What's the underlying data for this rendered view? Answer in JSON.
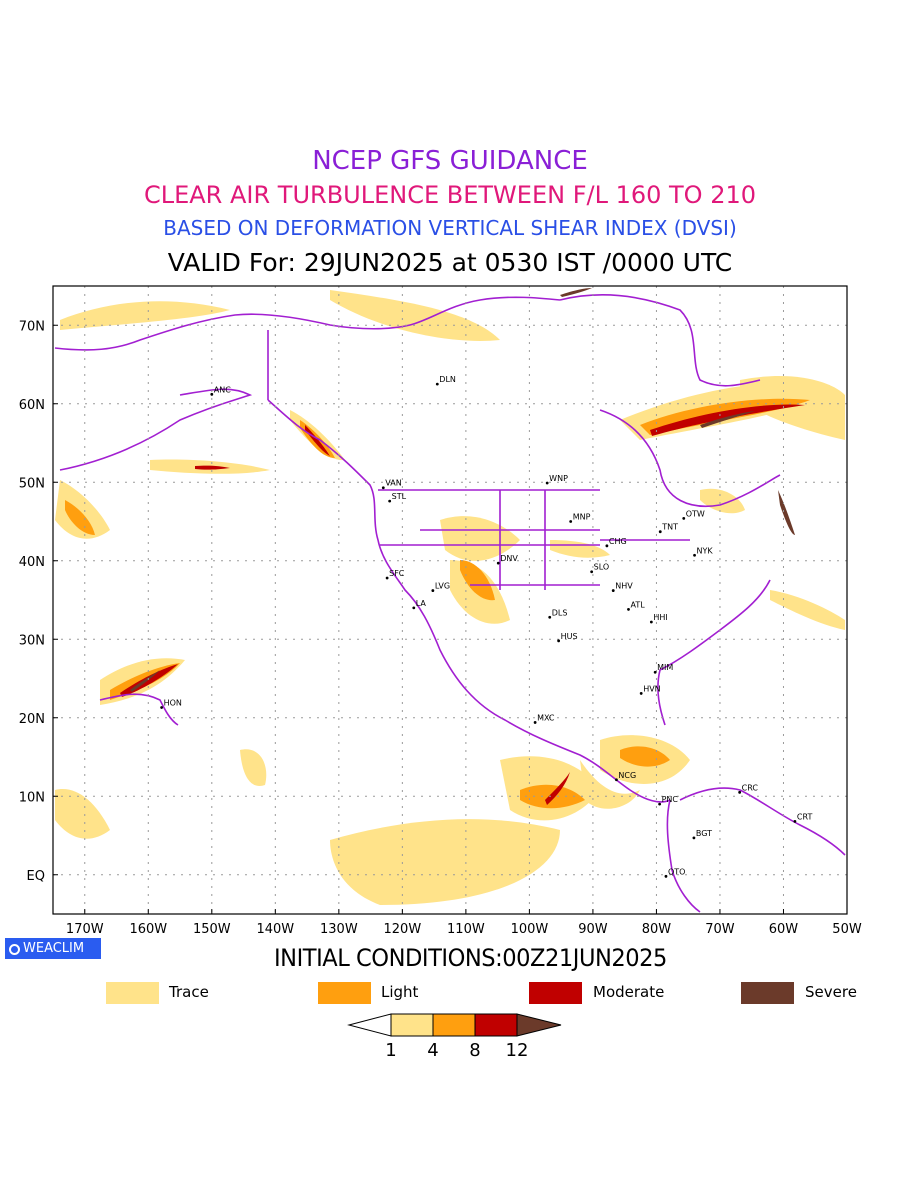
{
  "titles": {
    "line1": "NCEP GFS GUIDANCE",
    "line2": "CLEAR AIR TURBULENCE BETWEEN F/L 160 TO 210",
    "line3": "BASED ON DEFORMATION VERTICAL SHEAR INDEX (DVSI)",
    "line4": "VALID For: 29JUN2025 at 0530 IST /0000 UTC"
  },
  "colors": {
    "title1": "#8a1fd6",
    "title2": "#e0187a",
    "title3": "#2a4fe6",
    "coast": "#a21fd1",
    "trace": "#ffe38a",
    "light": "#ff9f0f",
    "moderate": "#c00000",
    "severe": "#6b3a2a",
    "grid": "#9a9a9a"
  },
  "map": {
    "lon_range": [
      -175,
      -50
    ],
    "lat_range": [
      -5,
      75
    ],
    "x_ticks": [
      "170W",
      "160W",
      "150W",
      "140W",
      "130W",
      "120W",
      "110W",
      "100W",
      "90W",
      "80W",
      "70W",
      "60W",
      "50W"
    ],
    "y_ticks": [
      "EQ",
      "10N",
      "20N",
      "30N",
      "40N",
      "50N",
      "60N",
      "70N"
    ],
    "stations": [
      {
        "name": "ANC"
      },
      {
        "name": "DLN"
      },
      {
        "name": "VAN"
      },
      {
        "name": "STL"
      },
      {
        "name": "WNP"
      },
      {
        "name": "MNP"
      },
      {
        "name": "TNT"
      },
      {
        "name": "OTW"
      },
      {
        "name": "CHG"
      },
      {
        "name": "NYK"
      },
      {
        "name": "DNV"
      },
      {
        "name": "SFC"
      },
      {
        "name": "LVG"
      },
      {
        "name": "LA"
      },
      {
        "name": "SLO"
      },
      {
        "name": "NHV"
      },
      {
        "name": "ATL"
      },
      {
        "name": "DLS"
      },
      {
        "name": "HHI"
      },
      {
        "name": "HUS"
      },
      {
        "name": "MIM"
      },
      {
        "name": "HVN"
      },
      {
        "name": "HON"
      },
      {
        "name": "MXC"
      },
      {
        "name": "NCG"
      },
      {
        "name": "CRC"
      },
      {
        "name": "PNC"
      },
      {
        "name": "CRT"
      },
      {
        "name": "BGT"
      },
      {
        "name": "QTO"
      }
    ]
  },
  "badge": "WEACLIM",
  "initial_conditions": "INITIAL CONDITIONS:00Z21JUN2025",
  "legend": [
    {
      "label": "Trace",
      "color": "#ffe38a"
    },
    {
      "label": "Light",
      "color": "#ff9f0f"
    },
    {
      "label": "Moderate",
      "color": "#c00000"
    },
    {
      "label": "Severe",
      "color": "#6b3a2a"
    }
  ],
  "colorbar": {
    "labels": [
      "1",
      "4",
      "8",
      "12"
    ],
    "colors": [
      "#ffffff",
      "#ffe38a",
      "#ff9f0f",
      "#c00000",
      "#6b3a2a"
    ]
  }
}
